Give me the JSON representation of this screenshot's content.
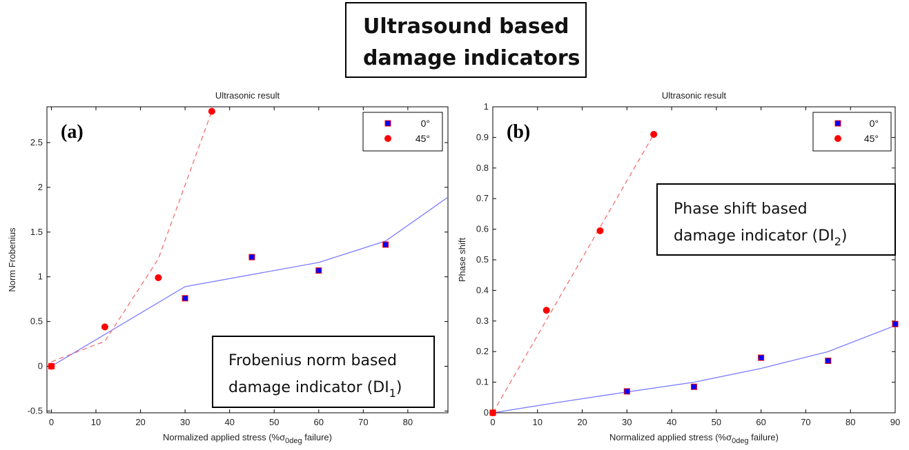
{
  "figure_title_lines": [
    "Ultrasound based",
    "damage indicators"
  ],
  "colors": {
    "series_0deg_fill": "#0000ff",
    "series_45deg_fill": "#ff0000",
    "marker_edge": "#ff0000",
    "fit_0deg_line": "#7b7bff",
    "fit_45deg_line": "#f47070"
  },
  "chart_data": [
    {
      "type": "scatter",
      "panel_label": "(a)",
      "title": "Ultrasonic result",
      "xlabel": "Normalized applied stress (%σ",
      "xlabel_subscript": "0deg",
      "xlabel_suffix": " failure)",
      "ylabel": "Norm Frobenius",
      "xlim": [
        -1,
        89
      ],
      "ylim": [
        -0.52,
        2.9
      ],
      "xticks": [
        0,
        10,
        20,
        30,
        40,
        50,
        60,
        70,
        80
      ],
      "yticks": [
        -0.5,
        0,
        0.5,
        1,
        1.5,
        2,
        2.5
      ],
      "ytick_labels": [
        "-0.5",
        "0",
        "0.5",
        "1",
        "1.5",
        "2",
        "2.5"
      ],
      "grid": false,
      "legend_position": "top-right",
      "series": [
        {
          "name": "0°",
          "marker": "square",
          "x": [
            0,
            30,
            45,
            60,
            75
          ],
          "y": [
            0,
            0.76,
            1.22,
            1.07,
            1.36
          ]
        },
        {
          "name": "45°",
          "marker": "circle",
          "x": [
            0,
            12,
            24,
            36
          ],
          "y": [
            0,
            0.44,
            0.99,
            2.85
          ]
        }
      ],
      "fit_lines": [
        {
          "series": "0°",
          "style": "solid",
          "x": [
            0,
            30,
            60,
            75,
            89
          ],
          "y": [
            0,
            0.89,
            1.16,
            1.4,
            1.89
          ]
        },
        {
          "series": "45°",
          "style": "dashed",
          "x": [
            0,
            12,
            24,
            36
          ],
          "y": [
            0.05,
            0.28,
            1.2,
            2.85
          ]
        }
      ],
      "annotation_lines": [
        "Frobenius norm based",
        "damage indicator (DI"
      ],
      "annotation_subscript": "1",
      "annotation_close": ")"
    },
    {
      "type": "scatter",
      "panel_label": "(b)",
      "title": "Ultrasonic result",
      "xlabel": "Normalized applied stress (%σ",
      "xlabel_subscript": "0deg",
      "xlabel_suffix": " failure)",
      "ylabel": "Phase shift",
      "xlim": [
        0,
        90
      ],
      "ylim": [
        0,
        1
      ],
      "xticks": [
        0,
        10,
        20,
        30,
        40,
        50,
        60,
        70,
        80,
        90
      ],
      "yticks": [
        0,
        0.1,
        0.2,
        0.3,
        0.4,
        0.5,
        0.6,
        0.7,
        0.8,
        0.9,
        1
      ],
      "ytick_labels": [
        "0",
        "0.1",
        "0.2",
        "0.3",
        "0.4",
        "0.5",
        "0.6",
        "0.7",
        "0.8",
        "0.9",
        "1"
      ],
      "grid": false,
      "legend_position": "top-right",
      "series": [
        {
          "name": "0°",
          "marker": "square",
          "x": [
            0,
            30,
            45,
            60,
            75,
            90
          ],
          "y": [
            0,
            0.07,
            0.085,
            0.18,
            0.17,
            0.29
          ]
        },
        {
          "name": "45°",
          "marker": "circle",
          "x": [
            0,
            12,
            24,
            36
          ],
          "y": [
            0,
            0.335,
            0.595,
            0.91
          ]
        }
      ],
      "fit_lines": [
        {
          "series": "0°",
          "style": "solid",
          "x": [
            0,
            15,
            30,
            45,
            60,
            75,
            90
          ],
          "y": [
            0,
            0.035,
            0.068,
            0.1,
            0.145,
            0.2,
            0.285
          ]
        },
        {
          "series": "45°",
          "style": "dashed",
          "x": [
            0,
            36
          ],
          "y": [
            0,
            0.91
          ]
        }
      ],
      "annotation_lines": [
        "Phase shift based",
        "damage indicator (DI"
      ],
      "annotation_subscript": "2",
      "annotation_close": ")"
    }
  ]
}
